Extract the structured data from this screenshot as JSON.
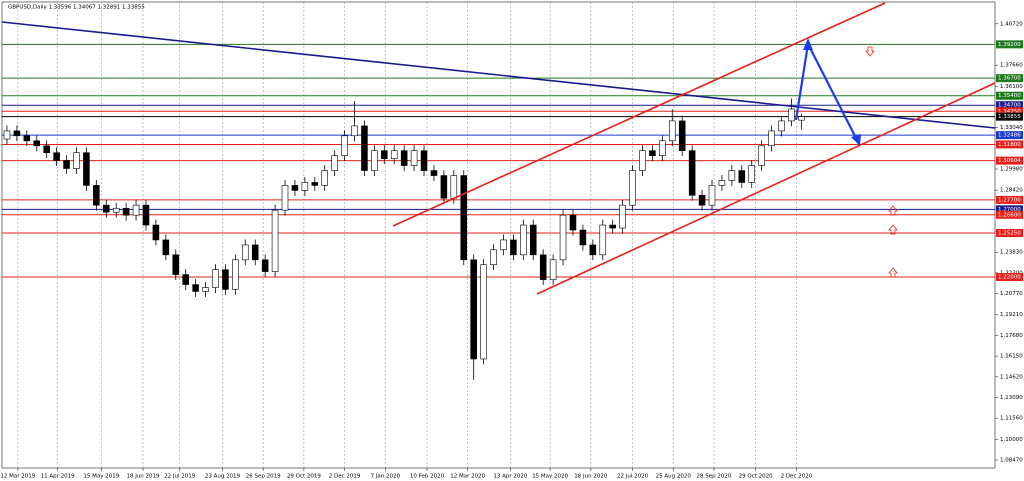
{
  "chart_data": {
    "type": "candlestick",
    "title": "GBPUSD,Daily 1.33596 1.34067 1.32891 1.33855",
    "x": [
      0,
      1,
      2,
      3,
      4,
      5,
      6,
      7,
      8,
      9,
      10,
      11,
      12,
      13,
      14,
      15,
      16,
      17,
      18,
      19,
      20,
      21,
      22,
      23,
      24,
      25,
      26,
      27,
      28,
      29,
      30,
      31,
      32,
      33,
      34,
      35,
      36,
      37,
      38,
      39,
      40,
      41,
      42,
      43,
      44,
      45,
      46,
      47,
      48,
      49,
      50,
      51,
      52,
      53,
      54,
      55,
      56,
      57,
      58,
      59,
      60,
      61,
      62,
      63,
      64,
      65,
      66,
      67,
      68,
      69,
      70,
      71,
      72,
      73,
      74,
      75,
      76,
      77,
      78,
      79,
      80
    ],
    "open": [
      1.322,
      1.328,
      1.3244,
      1.3207,
      1.317,
      1.3119,
      1.3061,
      1.3002,
      1.3119,
      1.2877,
      1.2731,
      1.2679,
      1.2708,
      1.2657,
      1.2731,
      1.2584,
      1.2474,
      1.2364,
      1.2218,
      1.2144,
      1.2093,
      1.2122,
      1.2254,
      1.2108,
      1.2327,
      1.2437,
      1.2327,
      1.224,
      1.2694,
      1.2877,
      1.284,
      1.2899,
      1.2877,
      1.2987,
      1.3097,
      1.3244,
      1.3317,
      1.2987,
      1.3134,
      1.3075,
      1.3134,
      1.3024,
      1.3134,
      1.2987,
      1.295,
      1.2782,
      1.295,
      1.2327,
      1.1594,
      1.2291,
      1.2401,
      1.2474,
      1.2364,
      1.2584,
      1.2364,
      1.2181,
      1.2327,
      1.2657,
      1.2547,
      1.2437,
      1.2364,
      1.2584,
      1.2562,
      1.2731,
      1.2987,
      1.3134,
      1.3097,
      1.3207,
      1.3354,
      1.3134,
      1.2804,
      1.2731,
      1.2877,
      1.2914,
      1.2987,
      1.2899,
      1.3024,
      1.317,
      1.328,
      1.3354,
      1.33596
    ],
    "high": [
      1.332,
      1.332,
      1.3284,
      1.3247,
      1.321,
      1.3159,
      1.3101,
      1.3159,
      1.3159,
      1.2917,
      1.2771,
      1.2748,
      1.2748,
      1.2771,
      1.2771,
      1.2624,
      1.2514,
      1.2404,
      1.2258,
      1.2184,
      1.2162,
      1.2294,
      1.2294,
      1.2367,
      1.2477,
      1.2477,
      1.2367,
      1.2734,
      1.2917,
      1.2917,
      1.2939,
      1.2939,
      1.3027,
      1.3137,
      1.3284,
      1.35,
      1.3357,
      1.3174,
      1.3174,
      1.3174,
      1.3174,
      1.3174,
      1.3174,
      1.3027,
      1.299,
      1.299,
      1.299,
      1.2367,
      1.2331,
      1.2441,
      1.2514,
      1.2514,
      1.2624,
      1.2624,
      1.2404,
      1.2367,
      1.2697,
      1.2697,
      1.2587,
      1.2477,
      1.2624,
      1.2624,
      1.2771,
      1.3027,
      1.3174,
      1.3174,
      1.3247,
      1.344,
      1.3394,
      1.3174,
      1.2844,
      1.2917,
      1.2954,
      1.3027,
      1.3027,
      1.3064,
      1.321,
      1.332,
      1.3394,
      1.352,
      1.34067
    ],
    "low": [
      1.318,
      1.3204,
      1.3167,
      1.313,
      1.3079,
      1.3021,
      1.2962,
      1.2962,
      1.2837,
      1.2691,
      1.2639,
      1.2639,
      1.2617,
      1.2617,
      1.2544,
      1.2434,
      1.2324,
      1.2178,
      1.2104,
      1.2053,
      1.2053,
      1.2082,
      1.2068,
      1.2068,
      1.2287,
      1.2287,
      1.22,
      1.22,
      1.2654,
      1.28,
      1.28,
      1.2837,
      1.2837,
      1.2947,
      1.3057,
      1.3204,
      1.2947,
      1.2947,
      1.3035,
      1.3035,
      1.2984,
      1.2984,
      1.2947,
      1.291,
      1.2742,
      1.2742,
      1.2287,
      1.144,
      1.1554,
      1.2251,
      1.2361,
      1.2324,
      1.2324,
      1.2324,
      1.2141,
      1.2141,
      1.2287,
      1.2507,
      1.2397,
      1.2324,
      1.2324,
      1.2522,
      1.2522,
      1.2691,
      1.2947,
      1.3057,
      1.3057,
      1.3167,
      1.3094,
      1.2764,
      1.2691,
      1.2691,
      1.2837,
      1.2874,
      1.2859,
      1.2859,
      1.2984,
      1.313,
      1.324,
      1.3314,
      1.32891
    ],
    "close": [
      1.328,
      1.3244,
      1.3207,
      1.317,
      1.3119,
      1.3061,
      1.3002,
      1.3119,
      1.2877,
      1.2731,
      1.2679,
      1.2708,
      1.2657,
      1.2731,
      1.2584,
      1.2474,
      1.2364,
      1.2218,
      1.2144,
      1.2093,
      1.2122,
      1.2254,
      1.2108,
      1.2327,
      1.2437,
      1.2327,
      1.224,
      1.2694,
      1.2877,
      1.284,
      1.2899,
      1.2877,
      1.2987,
      1.3097,
      1.3244,
      1.3317,
      1.2987,
      1.3134,
      1.3075,
      1.3134,
      1.3024,
      1.3134,
      1.2987,
      1.295,
      1.2782,
      1.295,
      1.2327,
      1.1594,
      1.2291,
      1.2401,
      1.2474,
      1.2364,
      1.2584,
      1.2364,
      1.2181,
      1.2327,
      1.2657,
      1.2547,
      1.2437,
      1.2364,
      1.2584,
      1.2562,
      1.2731,
      1.2987,
      1.3134,
      1.3097,
      1.3207,
      1.3354,
      1.3134,
      1.2804,
      1.2731,
      1.2877,
      1.2914,
      1.2987,
      1.2899,
      1.3024,
      1.317,
      1.328,
      1.3354,
      1.3442,
      1.33855
    ],
    "xlim": [
      -0.5,
      99.5
    ],
    "ylim": [
      1.0788,
      1.4233
    ],
    "xticks": [
      {
        "value": 1.1,
        "label": "12 Mar 2019"
      },
      {
        "value": 5.1,
        "label": "11 Apr 2019"
      },
      {
        "value": 9.5,
        "label": "15 May 2019"
      },
      {
        "value": 13.7,
        "label": "18 Jun 2019"
      },
      {
        "value": 17.4,
        "label": "22 Jul 2019"
      },
      {
        "value": 21.7,
        "label": "23 Aug 2019"
      },
      {
        "value": 25.8,
        "label": "26 Sep 2019"
      },
      {
        "value": 29.9,
        "label": "29 Oct 2019"
      },
      {
        "value": 34.0,
        "label": "2 Dec 2019"
      },
      {
        "value": 38.1,
        "label": "7 Jan 2020"
      },
      {
        "value": 42.3,
        "label": "10 Feb 2020"
      },
      {
        "value": 46.4,
        "label": "12 Mar 2020"
      },
      {
        "value": 50.7,
        "label": "13 Apr 2020"
      },
      {
        "value": 54.7,
        "label": "15 May 2020"
      },
      {
        "value": 58.8,
        "label": "18 Jun 2020"
      },
      {
        "value": 63.0,
        "label": "22 Jul 2020"
      },
      {
        "value": 67.1,
        "label": "25 Aug 2020"
      },
      {
        "value": 71.2,
        "label": "28 Sep 2020"
      },
      {
        "value": 75.4,
        "label": "29 Oct 2020"
      },
      {
        "value": 79.5,
        "label": "2 Dec 2020"
      }
    ],
    "yticks": [
      {
        "value": 1.4072,
        "label": "1.40720"
      },
      {
        "value": 1.3766,
        "label": "1.37660"
      },
      {
        "value": 1.361,
        "label": "1.36100"
      },
      {
        "value": 1.3304,
        "label": "1.33040"
      },
      {
        "value": 1.2998,
        "label": "1.29980"
      },
      {
        "value": 1.2842,
        "label": "1.28420"
      },
      {
        "value": 1.2536,
        "label": "1.25360"
      },
      {
        "value": 1.2383,
        "label": "1.23830"
      },
      {
        "value": 1.223,
        "label": "1.22300"
      },
      {
        "value": 1.2077,
        "label": "1.20770"
      },
      {
        "value": 1.1921,
        "label": "1.19210"
      },
      {
        "value": 1.1768,
        "label": "1.17680"
      },
      {
        "value": 1.1615,
        "label": "1.16150"
      },
      {
        "value": 1.1462,
        "label": "1.14620"
      },
      {
        "value": 1.1309,
        "label": "1.13090"
      },
      {
        "value": 1.1156,
        "label": "1.11560"
      },
      {
        "value": 1.1,
        "label": "1.10000"
      },
      {
        "value": 1.0847,
        "label": "1.08470"
      }
    ],
    "levels": [
      {
        "value": 1.392,
        "label": "1.39200",
        "color": "#1e7a1e"
      },
      {
        "value": 1.367,
        "label": "1.36700",
        "color": "#1e7a1e"
      },
      {
        "value": 1.354,
        "label": "1.35400",
        "color": "#1e7a1e"
      },
      {
        "value": 1.347,
        "label": "1.34700",
        "color": "#1a1a8c"
      },
      {
        "value": 1.3425,
        "label": "1.34250",
        "color": "#e8201a"
      },
      {
        "value": 1.33855,
        "label": "1.33855",
        "color": "#000000"
      },
      {
        "value": 1.32486,
        "label": "1.32486",
        "color": "#1a3cc8"
      },
      {
        "value": 1.318,
        "label": "1.31800",
        "color": "#e8201a"
      },
      {
        "value": 1.30604,
        "label": "1.30604",
        "color": "#e8201a"
      },
      {
        "value": 1.277,
        "label": "1.27700",
        "color": "#e8201a"
      },
      {
        "value": 1.27,
        "label": "1.27000",
        "color": "#1a1a8c"
      },
      {
        "value": 1.266,
        "label": "1.26600",
        "color": "#e8201a"
      },
      {
        "value": 1.2525,
        "label": "1.25250",
        "color": "#e8201a"
      },
      {
        "value": 1.22,
        "label": "1.22000",
        "color": "#e8201a"
      }
    ],
    "grid": true
  }
}
